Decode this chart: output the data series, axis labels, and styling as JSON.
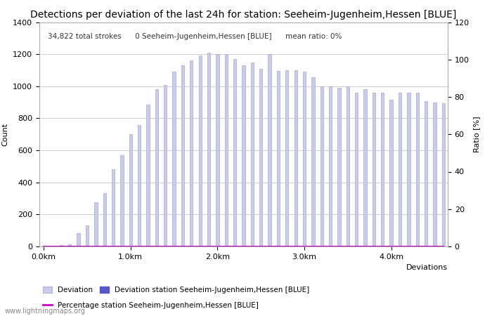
{
  "title": "Detections per deviation of the last 24h for station: Seeheim-Jugenheim,Hessen [BLUE]",
  "annotation": "34,822 total strokes      0 Seeheim-Jugenheim,Hessen [BLUE]      mean ratio: 0%",
  "ylabel_left": "Count",
  "ylabel_right": "Ratio [%]",
  "ylim_left": [
    0,
    1400
  ],
  "ylim_right": [
    0,
    120
  ],
  "yticks_left": [
    0,
    200,
    400,
    600,
    800,
    1000,
    1200,
    1400
  ],
  "yticks_right": [
    0,
    20,
    40,
    60,
    80,
    100,
    120
  ],
  "bar_color_light": "#c8ccee",
  "bar_color_dark": "#5555cc",
  "bar_edge_color": "#9999bb",
  "percentage_line_color": "#cc00cc",
  "background_color": "#ffffff",
  "grid_color": "#bbbbbb",
  "title_fontsize": 10,
  "bar_values": [
    5,
    0,
    10,
    15,
    85,
    130,
    275,
    335,
    480,
    570,
    700,
    760,
    885,
    980,
    1010,
    1090,
    1130,
    1160,
    1190,
    1210,
    1200,
    1200,
    1170,
    1130,
    1150,
    1110,
    1200,
    1095,
    1100,
    1100,
    1090,
    1055,
    1000,
    1000,
    990,
    1000,
    960,
    980,
    960,
    960,
    915,
    960,
    960,
    960,
    905,
    900,
    895
  ],
  "station_bar_values": [
    0,
    0,
    0,
    0,
    0,
    0,
    0,
    0,
    0,
    0,
    0,
    0,
    0,
    0,
    0,
    0,
    0,
    0,
    0,
    0,
    0,
    0,
    0,
    0,
    0,
    0,
    0,
    0,
    0,
    0,
    0,
    0,
    0,
    0,
    0,
    0,
    0,
    0,
    0,
    0,
    0,
    0,
    0,
    0,
    0,
    0,
    0
  ],
  "num_bars": 47,
  "x_tick_positions": [
    0,
    10,
    20,
    30,
    40
  ],
  "x_tick_labels": [
    "0.0km",
    "1.0km",
    "2.0km",
    "3.0km",
    "4.0km"
  ],
  "legend_label_light": "Deviation",
  "legend_label_dark": "Deviation station Seeheim-Jugenheim,Hessen [BLUE]",
  "legend_label_line": "Percentage station Seeheim-Jugenheim,Hessen [BLUE]",
  "watermark": "www.lightningmaps.org",
  "x_axis_label": "Deviations",
  "bar_width": 0.35
}
